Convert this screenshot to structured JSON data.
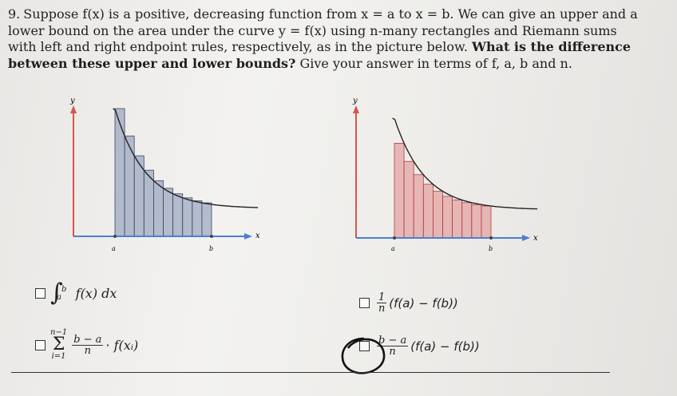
{
  "question": {
    "number": "9.",
    "text_part1": "Suppose f(x) is a positive, decreasing function from x = a to x = b. We can give an upper and a lower bound on the area under the curve y = f(x) using n-many rectangles and Riemann sums with left and right endpoint rules, respectively, as in the picture below. ",
    "text_bold": "What is the difference between these upper and lower bounds?",
    "text_part2": " Give your answer in terms of f, a, b and n."
  },
  "figures": {
    "left": {
      "y_label": "y",
      "x_label": "x",
      "a_label": "a",
      "b_label": "b",
      "rect_color": "#7f8fb0",
      "rect_count": 10
    },
    "right": {
      "y_label": "y",
      "x_label": "x",
      "a_label": "a",
      "b_label": "b",
      "rect_color": "#e08b8b",
      "rect_count": 10
    }
  },
  "options": {
    "opt1": {
      "upper": "b",
      "lower": "a",
      "integrand": "f(x) dx"
    },
    "opt2": {
      "num": "1",
      "den": "n",
      "expr": "(f(a) − f(b))"
    },
    "opt3": {
      "sum_top": "n−1",
      "sum_bottom": "i=1",
      "num": "b − a",
      "den": "n",
      "expr": "· f(xᵢ)"
    },
    "opt4": {
      "num": "b − a",
      "den": "n",
      "expr": "(f(a) − f(b))"
    }
  },
  "colors": {
    "axis_red": "#d9534f",
    "axis_blue": "#4a7fd4",
    "curve": "#222222"
  }
}
